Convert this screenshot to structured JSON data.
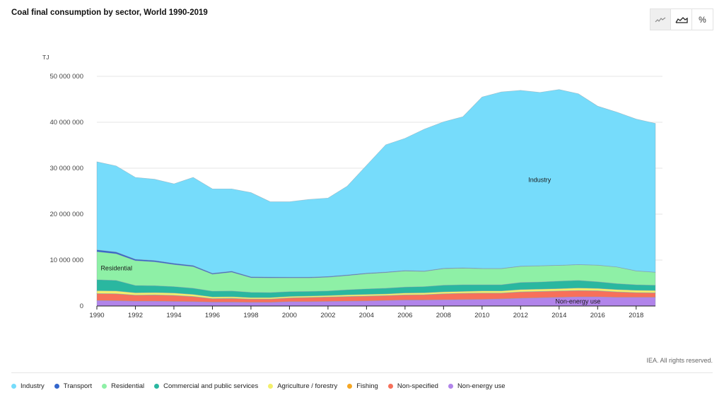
{
  "page": {
    "title": "Coal final consumption by sector, World 1990-2019",
    "copyright": "IEA. All rights reserved."
  },
  "toolbar": {
    "buttons": [
      {
        "icon": "line-chart-icon",
        "active": true
      },
      {
        "icon": "area-chart-icon",
        "active": false
      },
      {
        "icon": "percent-icon",
        "label": "%",
        "active": false
      }
    ]
  },
  "chart_data": {
    "type": "area",
    "stacked": true,
    "unit_label": "TJ",
    "x": [
      1990,
      1991,
      1992,
      1993,
      1994,
      1995,
      1996,
      1997,
      1998,
      1999,
      2000,
      2001,
      2002,
      2003,
      2004,
      2005,
      2006,
      2007,
      2008,
      2009,
      2010,
      2011,
      2012,
      2013,
      2014,
      2015,
      2016,
      2017,
      2018,
      2019
    ],
    "x_ticks": [
      "1990",
      "1992",
      "1994",
      "1996",
      "1998",
      "2000",
      "2002",
      "2004",
      "2006",
      "2008",
      "2010",
      "2012",
      "2014",
      "2016",
      "2018"
    ],
    "y_ticks": [
      "0",
      "10 000 000",
      "20 000 000",
      "30 000 000",
      "40 000 000",
      "50 000 000"
    ],
    "ylim": [
      0,
      50000000
    ],
    "grid": true,
    "legend_position": "bottom",
    "series": [
      {
        "name": "Non-energy use",
        "color": "#b184ea",
        "values": [
          1200000,
          1150000,
          1050000,
          1050000,
          1000000,
          950000,
          850000,
          850000,
          800000,
          800000,
          950000,
          950000,
          1000000,
          1050000,
          1100000,
          1200000,
          1300000,
          1300000,
          1350000,
          1400000,
          1450000,
          1550000,
          1700000,
          1800000,
          1900000,
          2000000,
          2000000,
          1900000,
          1900000,
          1900000
        ]
      },
      {
        "name": "Non-specified",
        "color": "#f7705a",
        "values": [
          1500000,
          1500000,
          1300000,
          1350000,
          1300000,
          1100000,
          750000,
          800000,
          700000,
          700000,
          800000,
          900000,
          950000,
          1000000,
          1050000,
          1050000,
          1100000,
          1150000,
          1300000,
          1350000,
          1350000,
          1250000,
          1350000,
          1350000,
          1350000,
          1350000,
          1300000,
          1150000,
          1000000,
          950000
        ]
      },
      {
        "name": "Fishing",
        "color": "#f5a623",
        "values": [
          30000,
          30000,
          30000,
          30000,
          30000,
          30000,
          30000,
          30000,
          30000,
          30000,
          30000,
          30000,
          30000,
          30000,
          30000,
          30000,
          30000,
          30000,
          30000,
          30000,
          30000,
          30000,
          30000,
          30000,
          30000,
          30000,
          30000,
          30000,
          30000,
          30000
        ]
      },
      {
        "name": "Agriculture / forestry",
        "color": "#f3ef6b",
        "values": [
          600000,
          600000,
          500000,
          500000,
          500000,
          450000,
          350000,
          350000,
          300000,
          300000,
          300000,
          300000,
          300000,
          350000,
          350000,
          350000,
          400000,
          400000,
          400000,
          400000,
          450000,
          450000,
          500000,
          500000,
          500000,
          550000,
          500000,
          500000,
          500000,
          500000
        ]
      },
      {
        "name": "Commercial and public services",
        "color": "#2ab7a0",
        "values": [
          2400000,
          2300000,
          1600000,
          1500000,
          1400000,
          1350000,
          1250000,
          1250000,
          1150000,
          1100000,
          1050000,
          1000000,
          1000000,
          1100000,
          1200000,
          1250000,
          1300000,
          1350000,
          1450000,
          1450000,
          1350000,
          1350000,
          1550000,
          1550000,
          1650000,
          1650000,
          1450000,
          1300000,
          1200000,
          1150000
        ]
      },
      {
        "name": "Residential",
        "color": "#8ef0a6",
        "values": [
          6100000,
          5800000,
          5400000,
          5200000,
          4800000,
          4700000,
          3700000,
          4100000,
          3200000,
          3200000,
          3000000,
          2950000,
          3000000,
          3100000,
          3300000,
          3400000,
          3500000,
          3300000,
          3600000,
          3600000,
          3500000,
          3500000,
          3500000,
          3500000,
          3400000,
          3400000,
          3600000,
          3600000,
          3000000,
          2800000
        ]
      },
      {
        "name": "Transport",
        "color": "#3366cc",
        "values": [
          400000,
          380000,
          300000,
          280000,
          260000,
          240000,
          200000,
          200000,
          180000,
          170000,
          160000,
          150000,
          150000,
          140000,
          130000,
          120000,
          110000,
          100000,
          90000,
          80000,
          70000,
          60000,
          60000,
          50000,
          50000,
          50000,
          40000,
          40000,
          40000,
          40000
        ]
      },
      {
        "name": "Industry",
        "color": "#76dcfb",
        "values": [
          19170000,
          18740000,
          17820000,
          17690000,
          17310000,
          19180000,
          18370000,
          17920000,
          18340000,
          16400000,
          16410000,
          16920000,
          17070000,
          19330000,
          23440000,
          27700000,
          28760000,
          30870000,
          31880000,
          32890000,
          37300000,
          38410000,
          38260000,
          37720000,
          38250000,
          37170000,
          34590000,
          33680000,
          33030000,
          32380000
        ]
      }
    ],
    "annotations": [
      {
        "text": "Industry",
        "series": "Industry",
        "x": 2012.4,
        "y": 27500000
      },
      {
        "text": "Residential",
        "series": "Residential",
        "x": 1990.2,
        "y": 8200000
      },
      {
        "text": "Non-energy use",
        "series": "Non-energy use",
        "x": 2013.8,
        "y": 1000000
      }
    ]
  }
}
